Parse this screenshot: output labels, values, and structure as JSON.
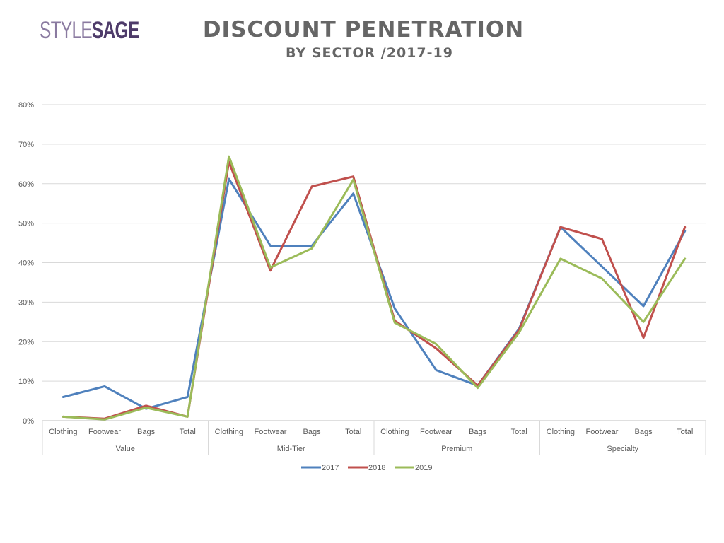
{
  "logo": {
    "part1": "STYLE",
    "part2": "SAGE"
  },
  "header": {
    "title": "DISCOUNT PENETRATION",
    "subtitle": "BY SECTOR /2017-19"
  },
  "chart_data": {
    "type": "line",
    "title": "DISCOUNT PENETRATION",
    "subtitle": "BY SECTOR /2017-19",
    "groups": [
      {
        "name": "Value",
        "categories": [
          "Clothing",
          "Footwear",
          "Bags",
          "Total"
        ]
      },
      {
        "name": "Mid-Tier",
        "categories": [
          "Clothing",
          "Footwear",
          "Bags",
          "Total"
        ]
      },
      {
        "name": "Premium",
        "categories": [
          "Clothing",
          "Footwear",
          "Bags",
          "Total"
        ]
      },
      {
        "name": "Specialty",
        "categories": [
          "Clothing",
          "Footwear",
          "Bags",
          "Total"
        ]
      }
    ],
    "y_ticks": [
      "0%",
      "10%",
      "20%",
      "30%",
      "40%",
      "50%",
      "60%",
      "70%",
      "80%"
    ],
    "ylim": [
      0,
      80
    ],
    "grid": true,
    "legend_position": "bottom",
    "series": [
      {
        "name": "2017",
        "color": "#4f81bd",
        "values": [
          6,
          8.7,
          3,
          6,
          61.2,
          44.3,
          44.3,
          57.5,
          28.4,
          12.8,
          8.9,
          23.3,
          49,
          39,
          29,
          48
        ]
      },
      {
        "name": "2018",
        "color": "#c0504d",
        "values": [
          1,
          0.5,
          3.8,
          1,
          65.5,
          38,
          59.3,
          61.8,
          25.3,
          18.3,
          8.9,
          23,
          49,
          46,
          21,
          49
        ]
      },
      {
        "name": "2019",
        "color": "#9bbb59",
        "values": [
          1,
          0.3,
          3.3,
          1,
          66.9,
          38.8,
          43.6,
          61,
          24.8,
          19.4,
          8.3,
          22.3,
          41,
          36,
          25,
          41
        ]
      }
    ]
  }
}
